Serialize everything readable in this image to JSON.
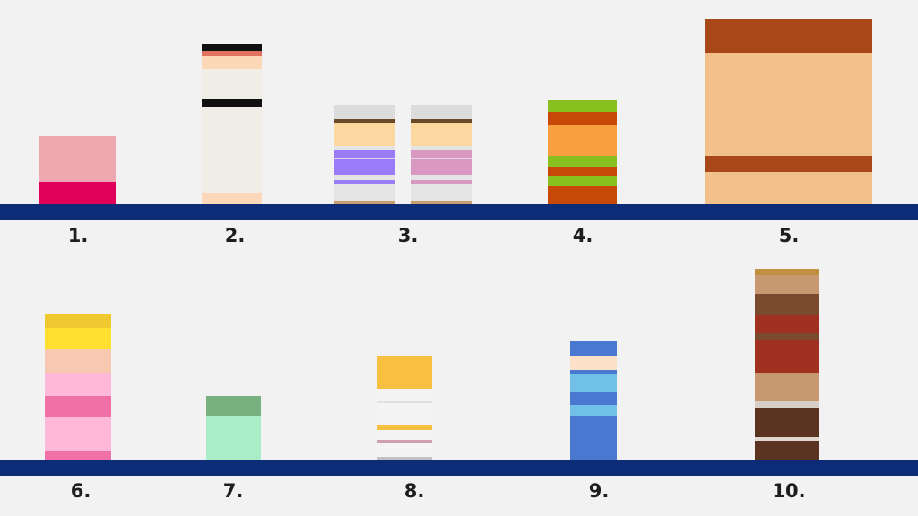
{
  "labels": [
    "1.",
    "2.",
    "3.",
    "4.",
    "5.",
    "6.",
    "7.",
    "8.",
    "9.",
    "10."
  ]
}
